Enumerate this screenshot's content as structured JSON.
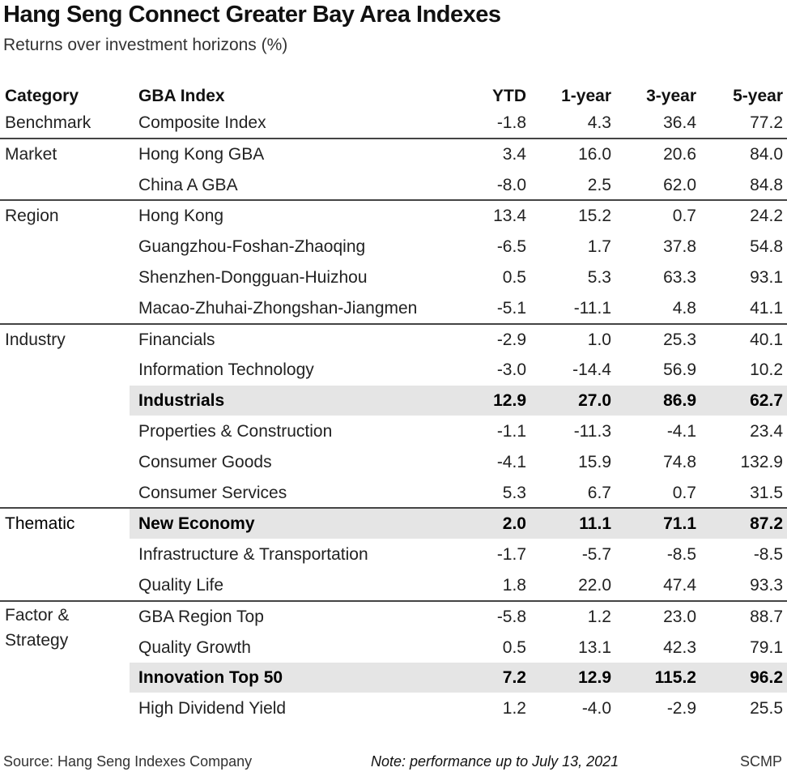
{
  "title": "Hang Seng Connect Greater Bay Area Indexes",
  "subtitle": "Returns over investment horizons (%)",
  "chart_data": {
    "type": "table",
    "columns": [
      "Category",
      "GBA Index",
      "YTD",
      "1-year",
      "3-year",
      "5-year"
    ],
    "groups": [
      {
        "category": "Benchmark",
        "rows": [
          {
            "index": "Composite Index",
            "values": [
              "-1.8",
              "4.3",
              "36.4",
              "77.2"
            ],
            "highlight": false
          }
        ]
      },
      {
        "category": "Market",
        "rows": [
          {
            "index": "Hong Kong GBA",
            "values": [
              "3.4",
              "16.0",
              "20.6",
              "84.0"
            ],
            "highlight": false
          },
          {
            "index": "China A GBA",
            "values": [
              "-8.0",
              "2.5",
              "62.0",
              "84.8"
            ],
            "highlight": false
          }
        ]
      },
      {
        "category": "Region",
        "rows": [
          {
            "index": "Hong Kong",
            "values": [
              "13.4",
              "15.2",
              "0.7",
              "24.2"
            ],
            "highlight": false
          },
          {
            "index": "Guangzhou-Foshan-Zhaoqing",
            "values": [
              "-6.5",
              "1.7",
              "37.8",
              "54.8"
            ],
            "highlight": false
          },
          {
            "index": "Shenzhen-Dongguan-Huizhou",
            "values": [
              "0.5",
              "5.3",
              "63.3",
              "93.1"
            ],
            "highlight": false
          },
          {
            "index": "Macao-Zhuhai-Zhongshan-Jiangmen",
            "values": [
              "-5.1",
              "-11.1",
              "4.8",
              "41.1"
            ],
            "highlight": false
          }
        ]
      },
      {
        "category": "Industry",
        "rows": [
          {
            "index": "Financials",
            "values": [
              "-2.9",
              "1.0",
              "25.3",
              "40.1"
            ],
            "highlight": false
          },
          {
            "index": "Information Technology",
            "values": [
              "-3.0",
              "-14.4",
              "56.9",
              "10.2"
            ],
            "highlight": false
          },
          {
            "index": "Industrials",
            "values": [
              "12.9",
              "27.0",
              "86.9",
              "62.7"
            ],
            "highlight": true
          },
          {
            "index": "Properties & Construction",
            "values": [
              "-1.1",
              "-11.3",
              "-4.1",
              "23.4"
            ],
            "highlight": false
          },
          {
            "index": "Consumer Goods",
            "values": [
              "-4.1",
              "15.9",
              "74.8",
              "132.9"
            ],
            "highlight": false
          },
          {
            "index": "Consumer Services",
            "values": [
              "5.3",
              "6.7",
              "0.7",
              "31.5"
            ],
            "highlight": false
          }
        ]
      },
      {
        "category": "Thematic",
        "rows": [
          {
            "index": "New Economy",
            "values": [
              "2.0",
              "11.1",
              "71.1",
              "87.2"
            ],
            "highlight": true
          },
          {
            "index": "Infrastructure & Transportation",
            "values": [
              "-1.7",
              "-5.7",
              "-8.5",
              "-8.5"
            ],
            "highlight": false
          },
          {
            "index": "Quality Life",
            "values": [
              "1.8",
              "22.0",
              "47.4",
              "93.3"
            ],
            "highlight": false
          }
        ]
      },
      {
        "category": "Factor &\nStrategy",
        "category_lines": [
          "Factor &",
          "Strategy"
        ],
        "rows": [
          {
            "index": "GBA Region Top",
            "values": [
              "-5.8",
              "1.2",
              "23.0",
              "88.7"
            ],
            "highlight": false
          },
          {
            "index": "Quality Growth",
            "values": [
              "0.5",
              "13.1",
              "42.3",
              "79.1"
            ],
            "highlight": false
          },
          {
            "index": "Innovation Top 50",
            "values": [
              "7.2",
              "12.9",
              "115.2",
              "96.2"
            ],
            "highlight": true
          },
          {
            "index": "High Dividend Yield",
            "values": [
              "1.2",
              "-4.0",
              "-2.9",
              "25.5"
            ],
            "highlight": false
          }
        ]
      }
    ],
    "highlight_color": "#e5e5e5"
  },
  "footer": {
    "source": "Source: Hang Seng Indexes Company",
    "note": "Note: performance up to July 13, 2021",
    "credit": "SCMP"
  }
}
